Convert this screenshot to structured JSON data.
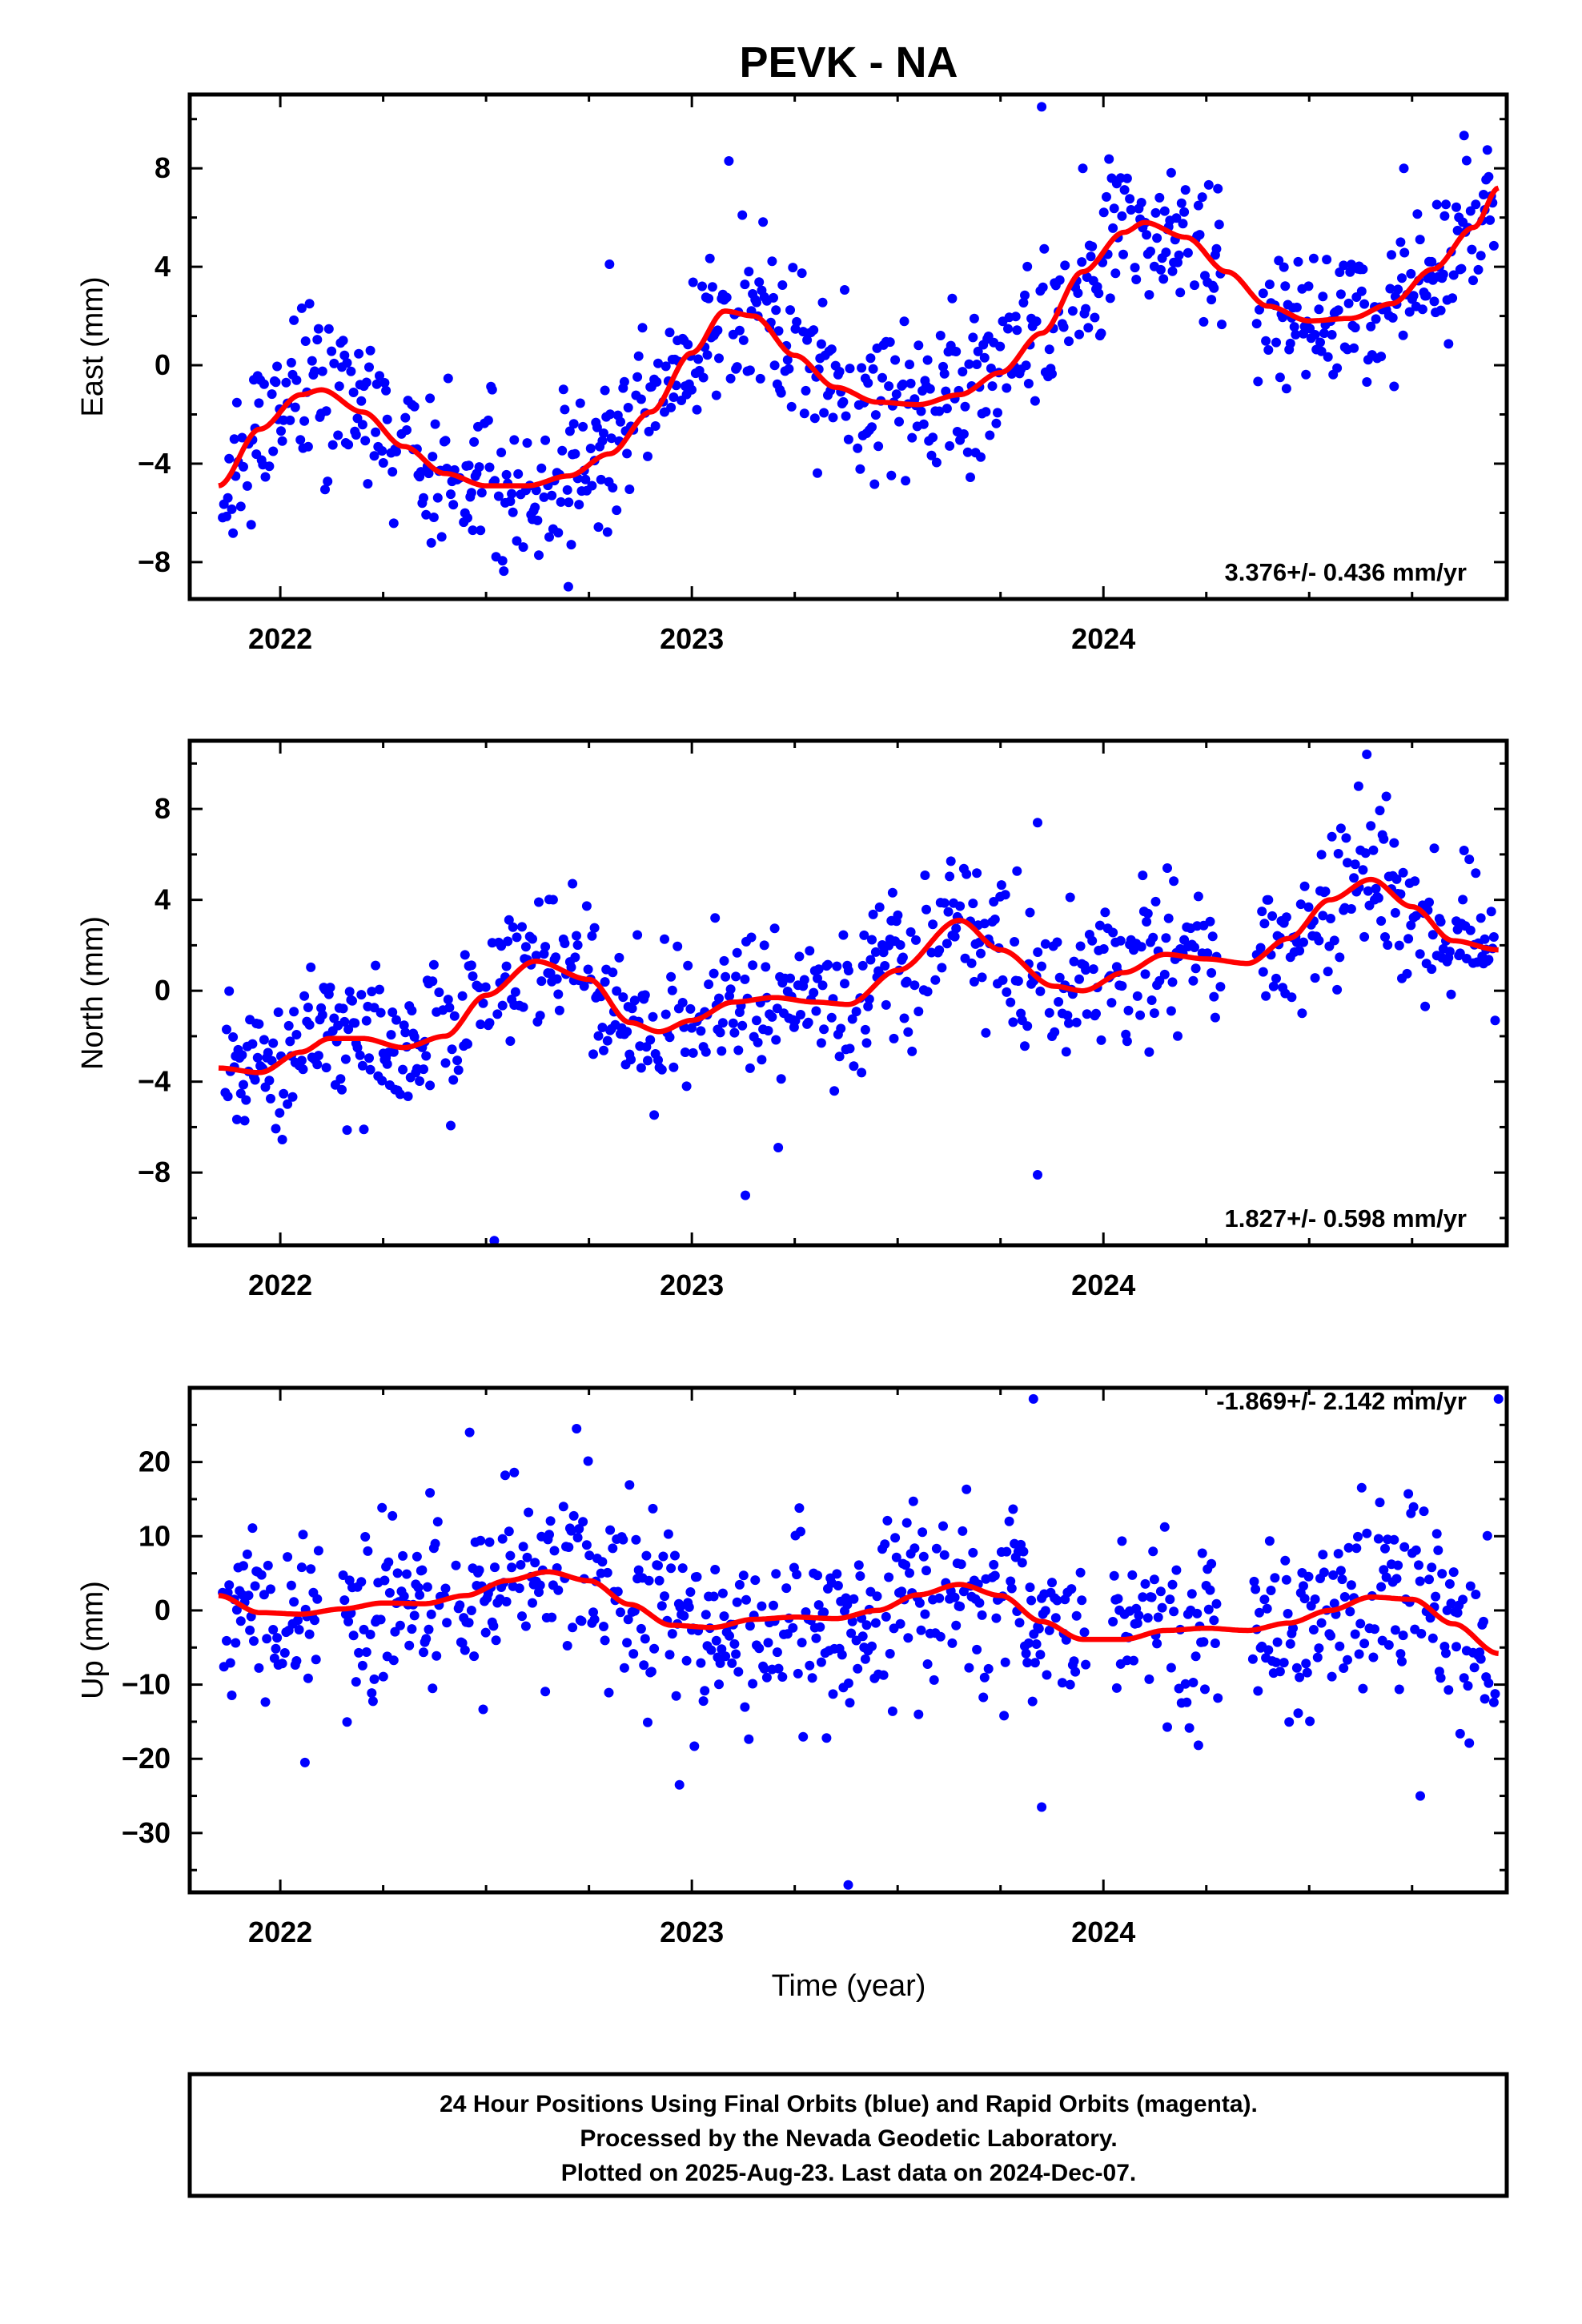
{
  "title": "PEVK - NA",
  "x_axis_label": "Time (year)",
  "x_ticks": [
    "2022",
    "2023",
    "2024"
  ],
  "colors": {
    "data": "#0000ff",
    "fit": "#ff0000",
    "frame": "#000000"
  },
  "footer": {
    "line1": "24 Hour Positions Using Final Orbits (blue) and Rapid Orbits (magenta).",
    "line2": "Processed by the Nevada Geodetic Laboratory.",
    "line3": "Plotted on 2025-Aug-23. Last data on 2024-Dec-07."
  },
  "chart_data": [
    {
      "type": "scatter",
      "component": "east",
      "ylabel": "East (mm)",
      "rate": "3.376+/- 0.436 mm/yr",
      "xlim": [
        2021.78,
        2024.98
      ],
      "ylim": [
        -9.5,
        11
      ],
      "yticks": [
        -8,
        -4,
        0,
        4,
        8
      ],
      "yticks_minor_step": 2,
      "model": [
        [
          2021.85,
          -4.9
        ],
        [
          2021.95,
          -2.6
        ],
        [
          2022.05,
          -1.2
        ],
        [
          2022.1,
          -1.0
        ],
        [
          2022.2,
          -1.9
        ],
        [
          2022.3,
          -3.3
        ],
        [
          2022.4,
          -4.4
        ],
        [
          2022.5,
          -4.9
        ],
        [
          2022.6,
          -4.9
        ],
        [
          2022.7,
          -4.5
        ],
        [
          2022.8,
          -3.6
        ],
        [
          2022.9,
          -1.9
        ],
        [
          2023.0,
          0.5
        ],
        [
          2023.08,
          2.2
        ],
        [
          2023.15,
          2.0
        ],
        [
          2023.25,
          0.4
        ],
        [
          2023.35,
          -0.9
        ],
        [
          2023.45,
          -1.5
        ],
        [
          2023.55,
          -1.6
        ],
        [
          2023.65,
          -1.2
        ],
        [
          2023.75,
          -0.3
        ],
        [
          2023.85,
          1.3
        ],
        [
          2023.95,
          3.8
        ],
        [
          2024.05,
          5.4
        ],
        [
          2024.1,
          5.8
        ],
        [
          2024.2,
          5.2
        ],
        [
          2024.3,
          3.8
        ],
        [
          2024.4,
          2.4
        ],
        [
          2024.5,
          1.8
        ],
        [
          2024.6,
          1.9
        ],
        [
          2024.7,
          2.5
        ],
        [
          2024.8,
          3.9
        ],
        [
          2024.9,
          5.6
        ],
        [
          2024.96,
          7.2
        ]
      ],
      "outliers": [
        [
          2022.7,
          -9.0
        ],
        [
          2023.85,
          10.5
        ],
        [
          2023.95,
          8.0
        ],
        [
          2024.02,
          7.6
        ],
        [
          2024.73,
          8.0
        ],
        [
          2023.09,
          8.3
        ],
        [
          2022.8,
          4.1
        ]
      ],
      "series_name": "",
      "seed": 11
    },
    {
      "type": "scatter",
      "component": "north",
      "ylabel": "North (mm)",
      "rate": "1.827+/- 0.598 mm/yr",
      "xlim": [
        2021.78,
        2024.98
      ],
      "ylim": [
        -11.2,
        11
      ],
      "yticks": [
        -8,
        -4,
        0,
        4,
        8
      ],
      "yticks_minor_step": 2,
      "model": [
        [
          2021.85,
          -3.4
        ],
        [
          2021.95,
          -3.6
        ],
        [
          2022.05,
          -2.7
        ],
        [
          2022.12,
          -2.1
        ],
        [
          2022.2,
          -2.1
        ],
        [
          2022.3,
          -2.5
        ],
        [
          2022.4,
          -2.0
        ],
        [
          2022.5,
          -0.2
        ],
        [
          2022.62,
          1.3
        ],
        [
          2022.75,
          0.5
        ],
        [
          2022.85,
          -1.4
        ],
        [
          2022.92,
          -1.8
        ],
        [
          2023.0,
          -1.3
        ],
        [
          2023.1,
          -0.5
        ],
        [
          2023.2,
          -0.3
        ],
        [
          2023.3,
          -0.5
        ],
        [
          2023.38,
          -0.6
        ],
        [
          2023.5,
          0.9
        ],
        [
          2023.65,
          3.1
        ],
        [
          2023.75,
          1.8
        ],
        [
          2023.88,
          0.2
        ],
        [
          2023.95,
          0.0
        ],
        [
          2024.05,
          0.8
        ],
        [
          2024.15,
          1.6
        ],
        [
          2024.25,
          1.4
        ],
        [
          2024.35,
          1.2
        ],
        [
          2024.45,
          2.3
        ],
        [
          2024.55,
          4.0
        ],
        [
          2024.65,
          4.9
        ],
        [
          2024.75,
          3.7
        ],
        [
          2024.85,
          2.2
        ],
        [
          2024.96,
          1.8
        ]
      ],
      "outliers": [
        [
          2022.52,
          -11.0
        ],
        [
          2023.13,
          -9.0
        ],
        [
          2023.21,
          -6.9
        ],
        [
          2023.84,
          -8.1
        ],
        [
          2023.84,
          7.4
        ],
        [
          2024.64,
          10.4
        ],
        [
          2024.62,
          9.0
        ]
      ],
      "series_name": "",
      "seed": 23
    },
    {
      "type": "scatter",
      "component": "up",
      "ylabel": "Up (mm)",
      "rate": "-1.869+/- 2.142 mm/yr",
      "xlim": [
        2021.78,
        2024.98
      ],
      "ylim": [
        -38,
        30
      ],
      "yticks": [
        -30,
        -20,
        -10,
        0,
        10,
        20
      ],
      "yticks_minor_step": 5,
      "model": [
        [
          2021.85,
          2.0
        ],
        [
          2021.95,
          -0.3
        ],
        [
          2022.05,
          -0.5
        ],
        [
          2022.15,
          0.2
        ],
        [
          2022.25,
          1.0
        ],
        [
          2022.35,
          0.9
        ],
        [
          2022.45,
          2.0
        ],
        [
          2022.55,
          4.0
        ],
        [
          2022.65,
          5.2
        ],
        [
          2022.75,
          4.0
        ],
        [
          2022.85,
          0.8
        ],
        [
          2022.95,
          -2.0
        ],
        [
          2023.05,
          -2.3
        ],
        [
          2023.15,
          -1.2
        ],
        [
          2023.25,
          -0.9
        ],
        [
          2023.35,
          -1.1
        ],
        [
          2023.45,
          0.0
        ],
        [
          2023.55,
          2.1
        ],
        [
          2023.65,
          3.5
        ],
        [
          2023.75,
          2.0
        ],
        [
          2023.85,
          -1.5
        ],
        [
          2023.95,
          -3.9
        ],
        [
          2024.05,
          -3.9
        ],
        [
          2024.15,
          -2.7
        ],
        [
          2024.25,
          -2.4
        ],
        [
          2024.35,
          -2.7
        ],
        [
          2024.45,
          -1.7
        ],
        [
          2024.55,
          0.0
        ],
        [
          2024.65,
          1.8
        ],
        [
          2024.75,
          1.5
        ],
        [
          2024.85,
          -1.8
        ],
        [
          2024.96,
          -5.8
        ]
      ],
      "outliers": [
        [
          2022.46,
          24.0
        ],
        [
          2022.72,
          24.5
        ],
        [
          2023.83,
          28.5
        ],
        [
          2024.96,
          28.5
        ],
        [
          2023.38,
          -37.0
        ],
        [
          2023.85,
          -26.5
        ],
        [
          2024.77,
          -25.0
        ],
        [
          2022.06,
          -20.5
        ],
        [
          2022.97,
          -23.5
        ]
      ],
      "series_name": "",
      "seed": 37
    }
  ]
}
